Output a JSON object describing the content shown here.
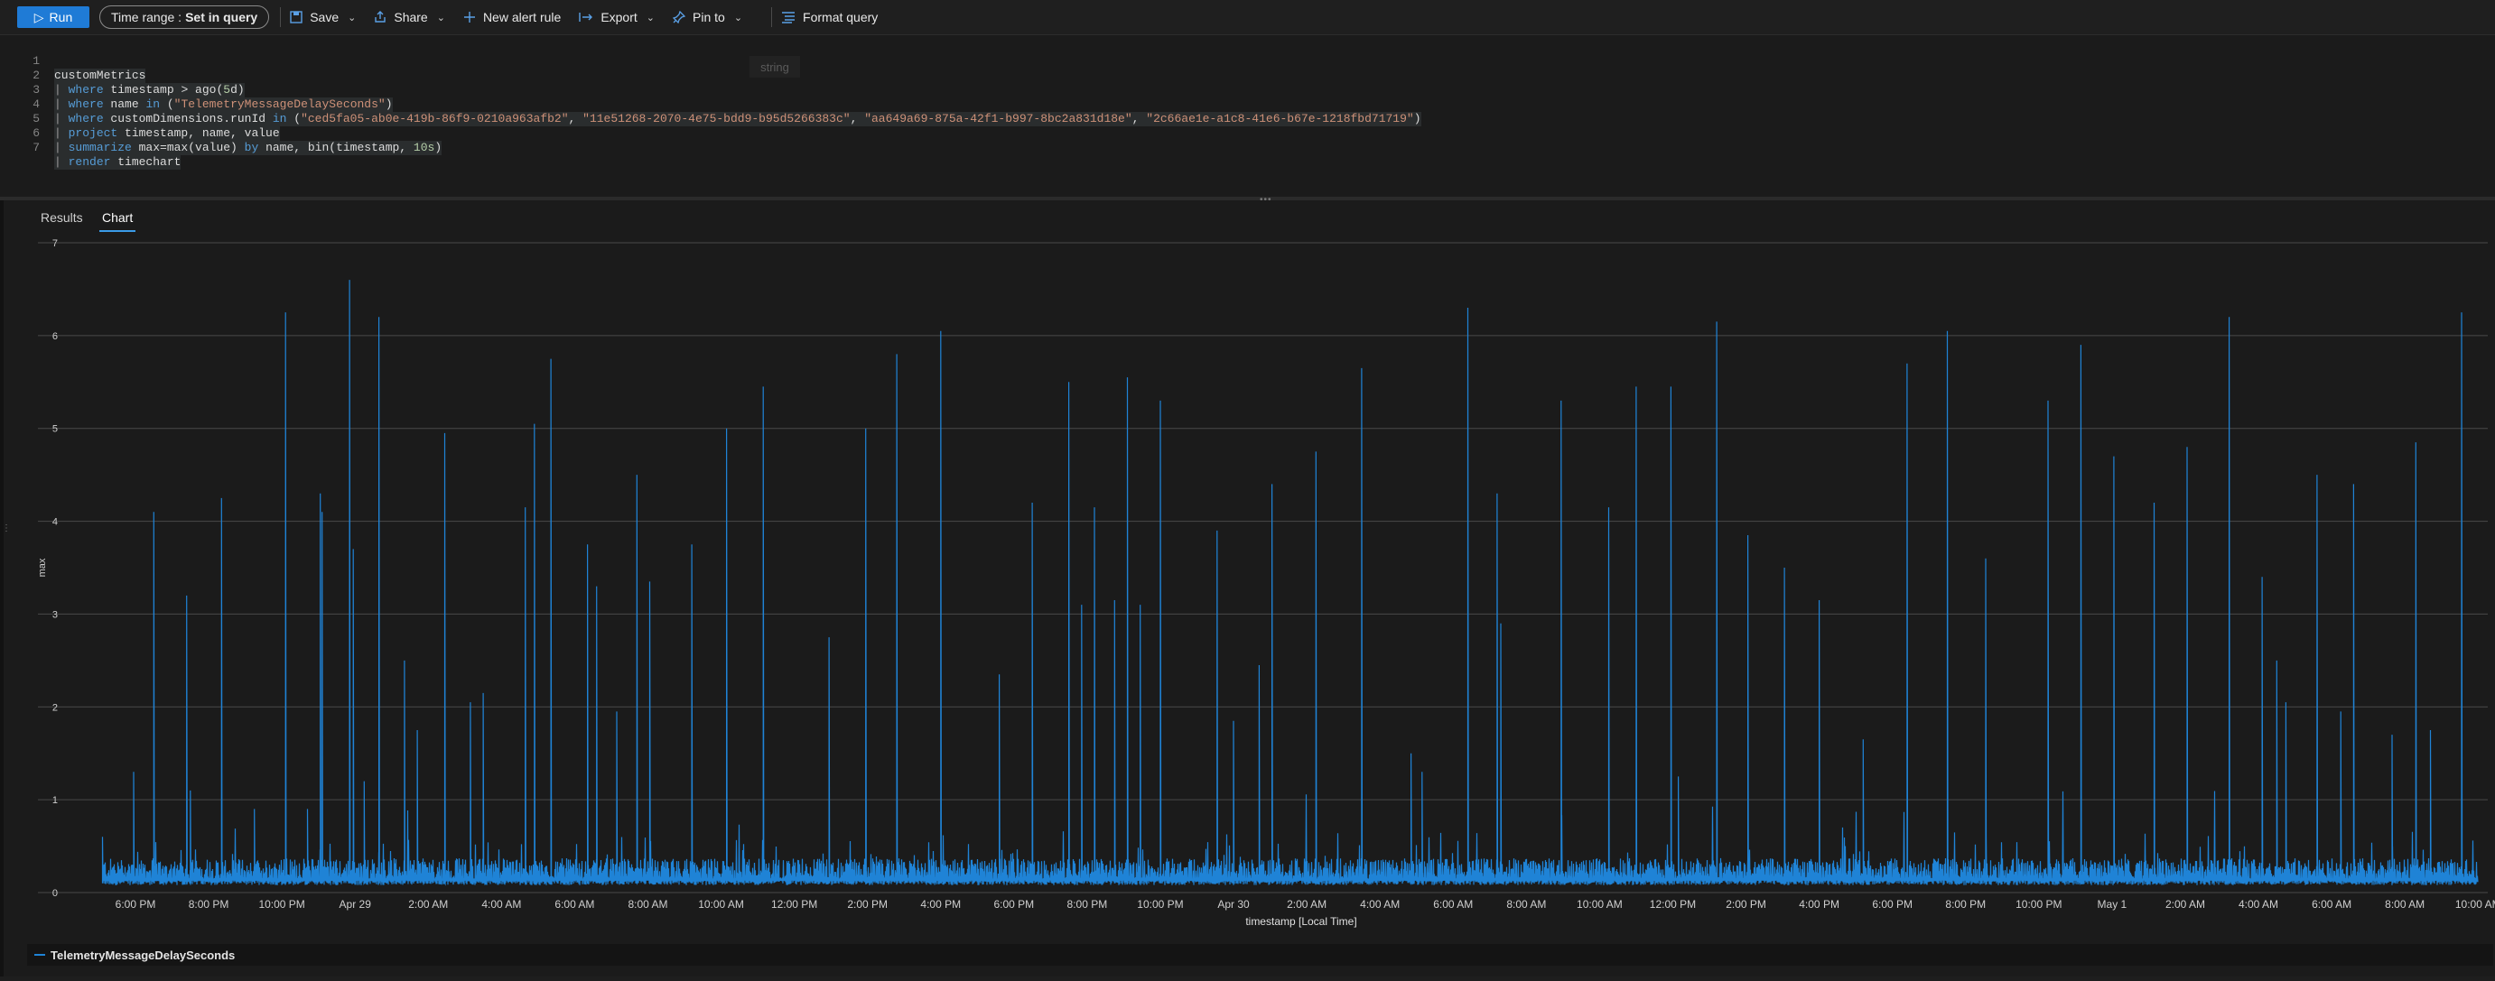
{
  "toolbar": {
    "run_label": "Run",
    "time_range_label": "Time range :",
    "time_range_value": "Set in query",
    "save_label": "Save",
    "share_label": "Share",
    "new_alert_label": "New alert rule",
    "export_label": "Export",
    "pin_label": "Pin to",
    "format_label": "Format query"
  },
  "editor": {
    "hint_text": "string",
    "lines": [
      {
        "n": "1",
        "text": "customMetrics"
      },
      {
        "n": "2",
        "text": "| where timestamp > ago(5d)"
      },
      {
        "n": "3",
        "text": "| where name in (\"TelemetryMessageDelaySeconds\")"
      },
      {
        "n": "4",
        "text": "| where customDimensions.runId in (\"ced5fa05-ab0e-419b-86f9-0210a963afb2\", \"11e51268-2070-4e75-bdd9-b95d5266383c\", \"aa649a69-875a-42f1-b997-8bc2a831d18e\", \"2c66ae1e-a1c8-41e6-b67e-1218fbd71719\")"
      },
      {
        "n": "5",
        "text": "| project timestamp, name, value"
      },
      {
        "n": "6",
        "text": "| summarize max=max(value) by name, bin(timestamp, 10s)"
      },
      {
        "n": "7",
        "text": "| render timechart"
      }
    ]
  },
  "tabs": [
    {
      "label": "Results",
      "active": false
    },
    {
      "label": "Chart",
      "active": true
    }
  ],
  "chart_data": {
    "type": "line",
    "xlabel": "timestamp [Local Time]",
    "ylabel": "max",
    "ylim": [
      0,
      7
    ],
    "yticks": [
      "0",
      "1",
      "2",
      "3",
      "4",
      "5",
      "6",
      "7"
    ],
    "x_range": [
      "2024-04-28 16:45",
      "2024-05-01 10:00"
    ],
    "xticks": [
      "6:00 PM",
      "8:00 PM",
      "10:00 PM",
      "Apr 29",
      "2:00 AM",
      "4:00 AM",
      "6:00 AM",
      "8:00 AM",
      "10:00 AM",
      "12:00 PM",
      "2:00 PM",
      "4:00 PM",
      "6:00 PM",
      "8:00 PM",
      "10:00 PM",
      "Apr 30",
      "2:00 AM",
      "4:00 AM",
      "6:00 AM",
      "8:00 AM",
      "10:00 AM",
      "12:00 PM",
      "2:00 PM",
      "4:00 PM",
      "6:00 PM",
      "8:00 PM",
      "10:00 PM",
      "May 1",
      "2:00 AM",
      "4:00 AM",
      "6:00 AM",
      "8:00 AM",
      "10:00 AM"
    ],
    "grid": true,
    "legend_position": "bottom",
    "baseline_approx": 0.2,
    "series": [
      {
        "name": "TelemetryMessageDelaySeconds",
        "color": "#1f83d6",
        "peaks_hours_since_start": [
          [
            0.35,
            0.6
          ],
          [
            1.2,
            1.3
          ],
          [
            1.75,
            4.1
          ],
          [
            2.65,
            3.2
          ],
          [
            2.75,
            1.1
          ],
          [
            3.6,
            4.25
          ],
          [
            4.5,
            0.9
          ],
          [
            5.35,
            6.25
          ],
          [
            5.95,
            0.9
          ],
          [
            6.3,
            4.3
          ],
          [
            6.35,
            4.1
          ],
          [
            7.1,
            6.6
          ],
          [
            7.2,
            3.7
          ],
          [
            7.5,
            1.2
          ],
          [
            7.9,
            6.2
          ],
          [
            8.6,
            2.5
          ],
          [
            8.95,
            1.75
          ],
          [
            9.7,
            4.95
          ],
          [
            10.4,
            2.05
          ],
          [
            10.75,
            2.15
          ],
          [
            11.9,
            4.15
          ],
          [
            12.15,
            5.05
          ],
          [
            12.6,
            5.75
          ],
          [
            13.6,
            3.75
          ],
          [
            13.85,
            3.3
          ],
          [
            14.4,
            1.95
          ],
          [
            14.95,
            4.5
          ],
          [
            15.3,
            3.35
          ],
          [
            16.45,
            3.75
          ],
          [
            17.4,
            5.0
          ],
          [
            18.4,
            5.45
          ],
          [
            20.2,
            2.75
          ],
          [
            21.2,
            5.0
          ],
          [
            22.05,
            5.8
          ],
          [
            23.25,
            6.05
          ],
          [
            24.85,
            2.35
          ],
          [
            25.75,
            4.2
          ],
          [
            26.75,
            5.5
          ],
          [
            27.1,
            3.1
          ],
          [
            27.45,
            4.15
          ],
          [
            28.0,
            3.15
          ],
          [
            28.35,
            5.55
          ],
          [
            28.7,
            3.1
          ],
          [
            29.25,
            5.3
          ],
          [
            30.8,
            3.9
          ],
          [
            31.25,
            1.85
          ],
          [
            31.95,
            2.45
          ],
          [
            32.3,
            4.4
          ],
          [
            33.5,
            4.75
          ],
          [
            34.75,
            5.65
          ],
          [
            36.1,
            1.5
          ],
          [
            36.4,
            1.3
          ],
          [
            37.65,
            6.3
          ],
          [
            38.45,
            4.3
          ],
          [
            38.55,
            2.9
          ],
          [
            40.2,
            5.3
          ],
          [
            41.5,
            4.15
          ],
          [
            42.25,
            5.45
          ],
          [
            43.2,
            5.45
          ],
          [
            43.4,
            1.25
          ],
          [
            44.45,
            6.15
          ],
          [
            45.3,
            3.85
          ],
          [
            46.3,
            3.5
          ],
          [
            47.25,
            3.15
          ],
          [
            48.45,
            1.65
          ],
          [
            49.65,
            5.7
          ],
          [
            50.75,
            6.05
          ],
          [
            51.8,
            3.6
          ],
          [
            53.5,
            5.3
          ],
          [
            54.4,
            5.9
          ],
          [
            55.3,
            4.7
          ],
          [
            56.4,
            4.2
          ],
          [
            57.3,
            4.8
          ],
          [
            58.45,
            6.2
          ],
          [
            59.35,
            3.4
          ],
          [
            59.75,
            2.5
          ],
          [
            60.0,
            2.05
          ],
          [
            60.85,
            4.5
          ],
          [
            61.5,
            1.95
          ],
          [
            61.85,
            4.4
          ],
          [
            62.9,
            1.7
          ],
          [
            63.55,
            4.85
          ],
          [
            63.95,
            1.75
          ],
          [
            64.8,
            6.25
          ],
          [
            65.55,
            2.5
          ],
          [
            66.15,
            2.0
          ],
          [
            66.9,
            4.25
          ],
          [
            67.45,
            1.6
          ],
          [
            67.85,
            5.5
          ],
          [
            68.25,
            1.9
          ],
          [
            69.25,
            1.55
          ],
          [
            69.75,
            5.7
          ],
          [
            70.2,
            2.35
          ],
          [
            70.65,
            1.9
          ],
          [
            71.6,
            5.3
          ],
          [
            72.05,
            2.75
          ],
          [
            72.2,
            4.5
          ],
          [
            73.0,
            1.3
          ],
          [
            73.8,
            1.25
          ],
          [
            74.25,
            4.5
          ],
          [
            74.9,
            2.75
          ],
          [
            75.1,
            0.7
          ]
        ]
      }
    ]
  }
}
